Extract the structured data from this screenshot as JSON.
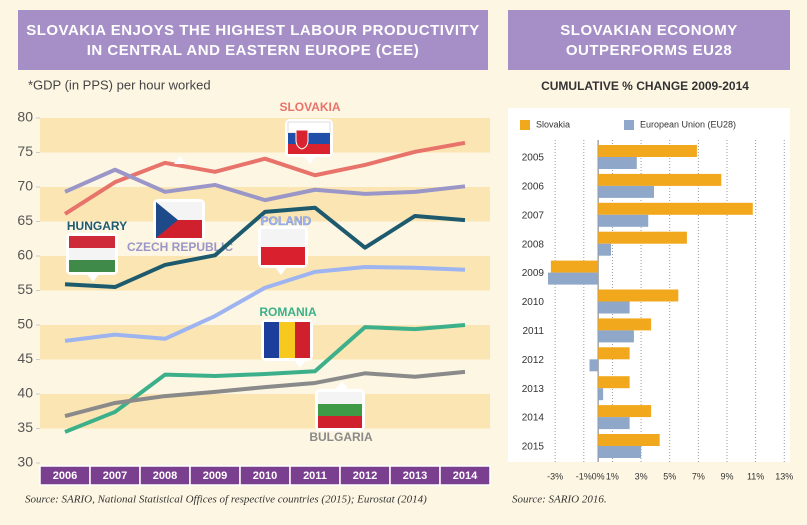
{
  "chart_data": [
    {
      "type": "line",
      "title": [
        "SLOVAKIA ENJOYS THE HIGHEST LABOUR PRODUCTIVITY",
        "IN CENTRAL AND EASTERN EUROPE (CEE)"
      ],
      "note": "*GDP (in PPS) per hour worked",
      "source": "Source: SARIO, National Statistical Offices of respective countries (2015); Eurostat (2014)",
      "categories": [
        "2006",
        "2007",
        "2008",
        "2009",
        "2010",
        "2011",
        "2012",
        "2013",
        "2014"
      ],
      "ylim": [
        30,
        80
      ],
      "yticks": [
        30,
        35,
        40,
        45,
        50,
        55,
        60,
        65,
        70,
        75,
        80
      ],
      "series": [
        {
          "name": "SLOVAKIA",
          "color": "#e8736a",
          "values": [
            66.1,
            70.7,
            73.5,
            72.2,
            74.1,
            71.7,
            73.2,
            75.1,
            76.4
          ]
        },
        {
          "name": "CZECH REPUBLIC",
          "color": "#9a96c8",
          "values": [
            69.3,
            72.5,
            69.3,
            70.3,
            68.1,
            69.6,
            69.0,
            69.3,
            70.1
          ]
        },
        {
          "name": "HUNGARY",
          "color": "#1e5a6e",
          "values": [
            55.9,
            55.5,
            58.7,
            60.1,
            66.4,
            67.0,
            61.2,
            65.8,
            65.2
          ]
        },
        {
          "name": "POLAND",
          "color": "#9db4f0",
          "values": [
            47.7,
            48.6,
            48.0,
            51.3,
            55.4,
            57.7,
            58.4,
            58.3,
            58.0
          ]
        },
        {
          "name": "ROMANIA",
          "color": "#3cb08a",
          "values": [
            34.5,
            37.4,
            42.8,
            42.6,
            42.9,
            43.3,
            49.7,
            49.4,
            50.0
          ]
        },
        {
          "name": "BULGARIA",
          "color": "#8a8a8a",
          "values": [
            36.8,
            38.7,
            39.7,
            40.3,
            41.0,
            41.6,
            43.0,
            42.5,
            43.2
          ]
        }
      ]
    },
    {
      "type": "hbar",
      "title": [
        "SLOVAKIAN ECONOMY",
        "OUTPERFORMS EU28"
      ],
      "subtitle": "CUMULATIVE % CHANGE 2009-2014",
      "source": "Source: SARIO 2016.",
      "categories": [
        "2005",
        "2006",
        "2007",
        "2008",
        "2009",
        "2010",
        "2011",
        "2012",
        "2013",
        "2014",
        "2015"
      ],
      "xlim": [
        -3.5,
        13.4
      ],
      "xticks": [
        {
          "value": -3,
          "label": "-3%"
        },
        {
          "value": -1,
          "label": "-1%"
        },
        {
          "value": 0,
          "label": "0%"
        },
        {
          "value": 1,
          "label": "1%"
        },
        {
          "value": 3,
          "label": "3%"
        },
        {
          "value": 5,
          "label": "5%"
        },
        {
          "value": 7,
          "label": "7%"
        },
        {
          "value": 9,
          "label": "9%"
        },
        {
          "value": 11,
          "label": "11%"
        },
        {
          "value": 13,
          "label": "13%"
        }
      ],
      "series": [
        {
          "name": "Slovakia",
          "color": "#f2a81d",
          "values": [
            6.9,
            8.6,
            10.8,
            6.2,
            -3.3,
            5.6,
            3.7,
            2.2,
            2.2,
            3.7,
            4.3
          ]
        },
        {
          "name": "European Union (EU28)",
          "color": "#8fa7c8",
          "values": [
            2.7,
            3.9,
            3.5,
            0.9,
            -3.5,
            2.2,
            2.5,
            -0.6,
            0.35,
            2.2,
            3.0
          ]
        }
      ]
    }
  ]
}
